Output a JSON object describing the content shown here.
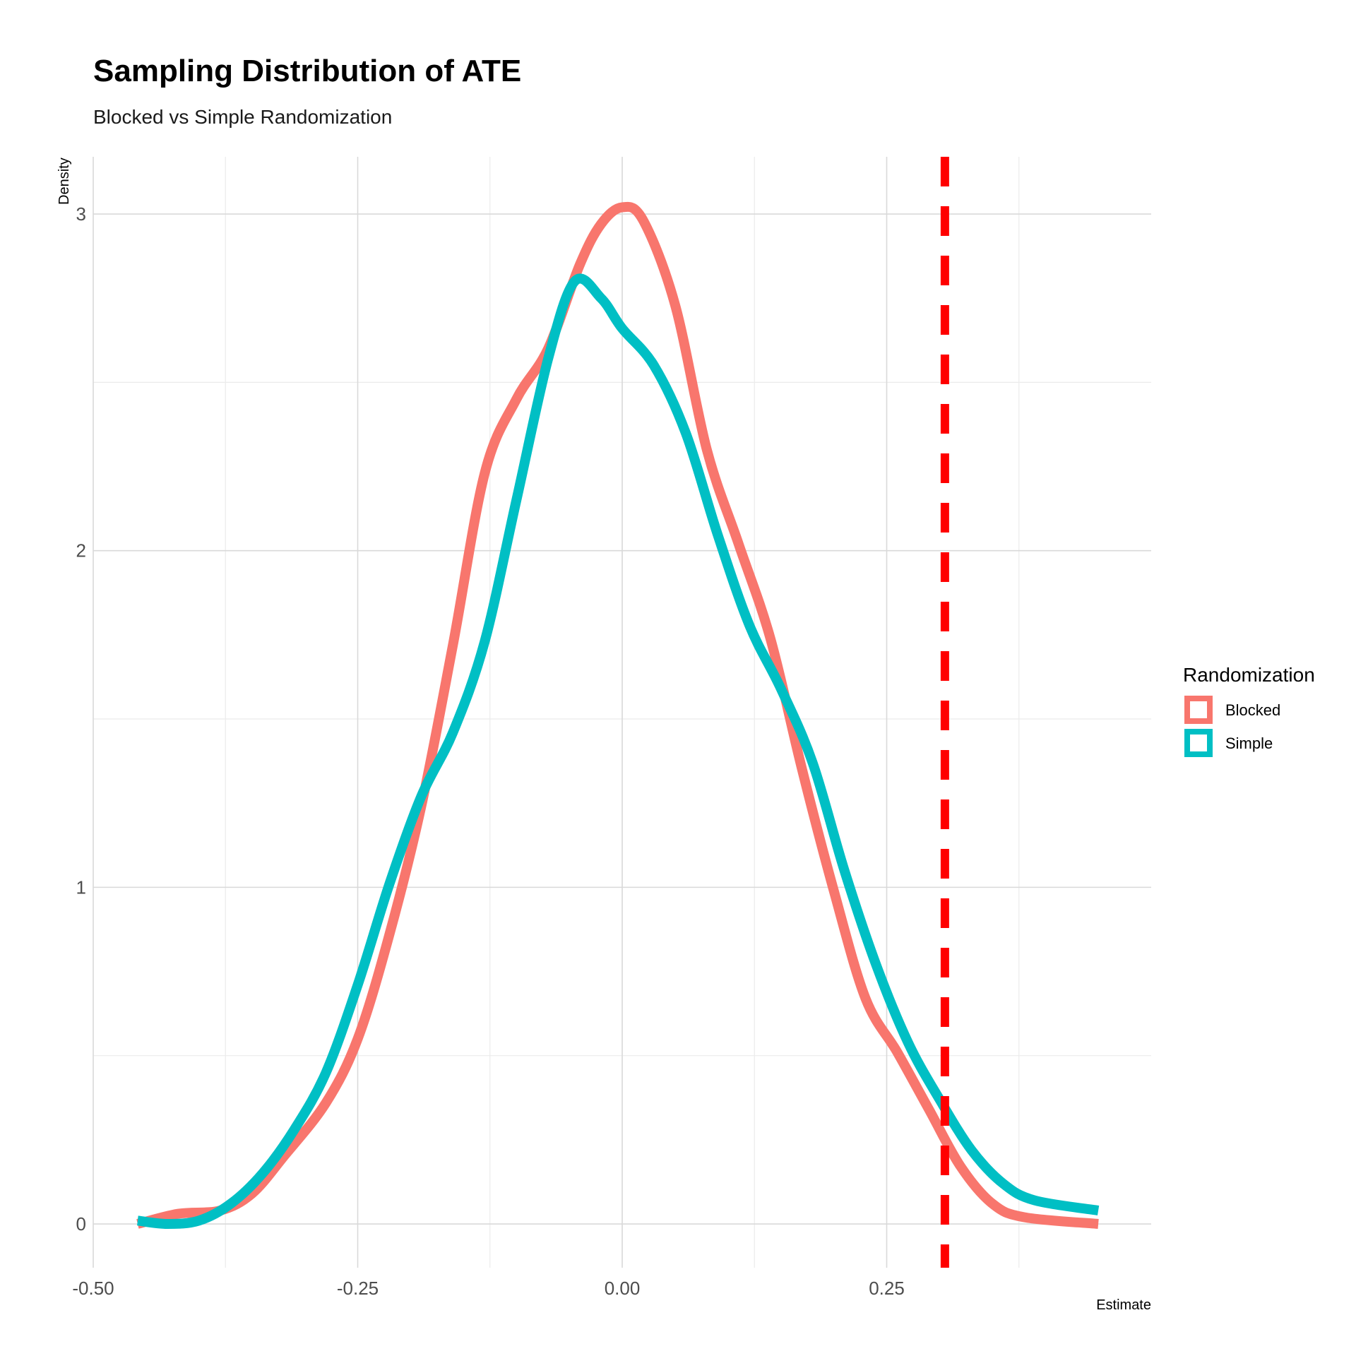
{
  "chart_data": {
    "type": "line",
    "title": "Sampling Distribution of ATE",
    "subtitle": "Blocked vs Simple Randomization",
    "xlabel": "Estimate",
    "ylabel": "Density",
    "xlim": [
      -0.5,
      0.5
    ],
    "ylim": [
      -0.13,
      3.17
    ],
    "x_ticks": [
      {
        "value": -0.5,
        "label": "-0.50"
      },
      {
        "value": -0.25,
        "label": "-0.25"
      },
      {
        "value": 0,
        "label": "0.00"
      },
      {
        "value": 0.25,
        "label": "0.25"
      }
    ],
    "y_ticks": [
      {
        "value": 0,
        "label": "0"
      },
      {
        "value": 1,
        "label": "1"
      },
      {
        "value": 2,
        "label": "2"
      },
      {
        "value": 3,
        "label": "3"
      }
    ],
    "x_minor_grid": [
      -0.375,
      -0.125,
      0.125,
      0.375
    ],
    "y_minor_grid": [
      0.5,
      1.5,
      2.5
    ],
    "grid": true,
    "legend": {
      "title": "Randomization",
      "placement": "right",
      "entries": [
        {
          "name": "Blocked",
          "color": "#F8766D"
        },
        {
          "name": "Simple",
          "color": "#00BFC4"
        }
      ]
    },
    "reference_line": {
      "orientation": "vertical",
      "x": 0.305,
      "color": "#FF0000",
      "style": "dashed"
    },
    "series": [
      {
        "name": "Blocked",
        "color": "#F8766D",
        "points": [
          [
            -0.458,
            0.0
          ],
          [
            -0.42,
            0.03
          ],
          [
            -0.38,
            0.04
          ],
          [
            -0.35,
            0.09
          ],
          [
            -0.32,
            0.2
          ],
          [
            -0.28,
            0.36
          ],
          [
            -0.25,
            0.55
          ],
          [
            -0.22,
            0.86
          ],
          [
            -0.19,
            1.24
          ],
          [
            -0.16,
            1.72
          ],
          [
            -0.13,
            2.23
          ],
          [
            -0.1,
            2.45
          ],
          [
            -0.07,
            2.6
          ],
          [
            -0.04,
            2.85
          ],
          [
            -0.02,
            2.97
          ],
          [
            0.0,
            3.02
          ],
          [
            0.02,
            2.98
          ],
          [
            0.05,
            2.73
          ],
          [
            0.08,
            2.3
          ],
          [
            0.11,
            2.02
          ],
          [
            0.14,
            1.74
          ],
          [
            0.17,
            1.35
          ],
          [
            0.2,
            0.99
          ],
          [
            0.23,
            0.67
          ],
          [
            0.26,
            0.51
          ],
          [
            0.29,
            0.34
          ],
          [
            0.32,
            0.17
          ],
          [
            0.35,
            0.06
          ],
          [
            0.38,
            0.02
          ],
          [
            0.45,
            0.0
          ]
        ]
      },
      {
        "name": "Simple",
        "color": "#00BFC4",
        "points": [
          [
            -0.458,
            0.01
          ],
          [
            -0.43,
            0.0
          ],
          [
            -0.4,
            0.01
          ],
          [
            -0.37,
            0.06
          ],
          [
            -0.34,
            0.15
          ],
          [
            -0.31,
            0.28
          ],
          [
            -0.28,
            0.45
          ],
          [
            -0.25,
            0.71
          ],
          [
            -0.22,
            1.01
          ],
          [
            -0.19,
            1.27
          ],
          [
            -0.16,
            1.46
          ],
          [
            -0.13,
            1.73
          ],
          [
            -0.1,
            2.15
          ],
          [
            -0.07,
            2.57
          ],
          [
            -0.045,
            2.8
          ],
          [
            -0.02,
            2.75
          ],
          [
            0.0,
            2.66
          ],
          [
            0.03,
            2.55
          ],
          [
            0.06,
            2.35
          ],
          [
            0.09,
            2.05
          ],
          [
            0.12,
            1.78
          ],
          [
            0.15,
            1.59
          ],
          [
            0.18,
            1.37
          ],
          [
            0.21,
            1.05
          ],
          [
            0.24,
            0.77
          ],
          [
            0.27,
            0.54
          ],
          [
            0.3,
            0.37
          ],
          [
            0.33,
            0.22
          ],
          [
            0.36,
            0.12
          ],
          [
            0.39,
            0.07
          ],
          [
            0.45,
            0.04
          ]
        ]
      }
    ]
  }
}
